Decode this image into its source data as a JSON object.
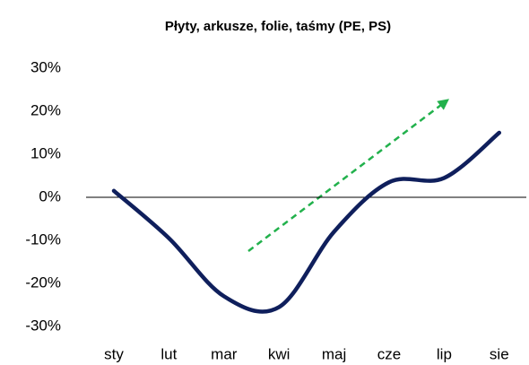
{
  "chart_data": {
    "type": "line",
    "title": "Płyty, arkusze, folie, taśmy (PE, PS)",
    "categories": [
      "sty",
      "lut",
      "mar",
      "kwi",
      "maj",
      "cze",
      "lip",
      "sie"
    ],
    "series": [
      {
        "color": "#0f1f5c",
        "values": [
          1.5,
          -9.5,
          -23,
          -25.5,
          -8,
          3.5,
          4.5,
          15
        ]
      }
    ],
    "ylim": [
      -30,
      30
    ],
    "yticks": [
      {
        "value": -30,
        "label": "-30%"
      },
      {
        "value": -20,
        "label": "-20%"
      },
      {
        "value": -10,
        "label": "-10%"
      },
      {
        "value": 0,
        "label": "0%"
      },
      {
        "value": 10,
        "label": "10%"
      },
      {
        "value": 20,
        "label": "20%"
      },
      {
        "value": 30,
        "label": "30%"
      }
    ],
    "grid": false
  }
}
